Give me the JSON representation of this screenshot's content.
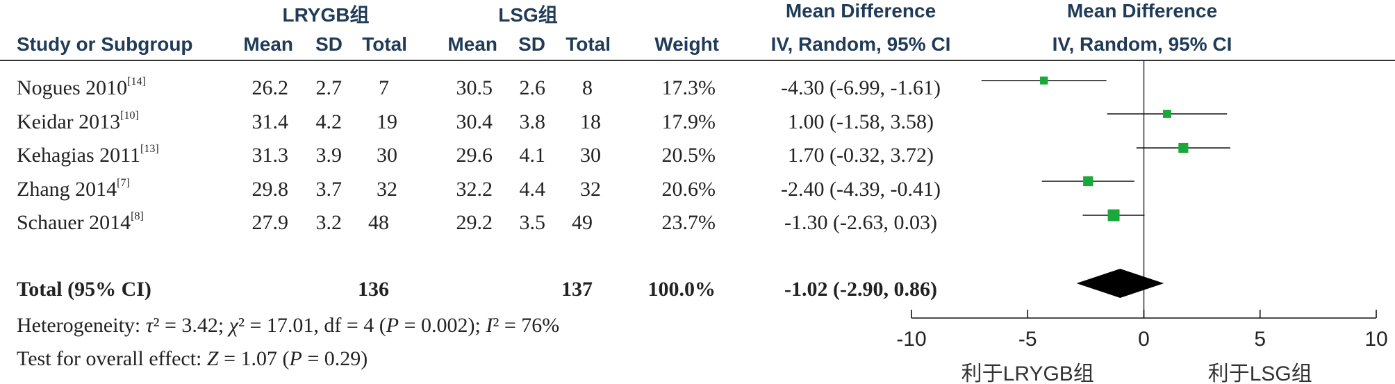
{
  "headers": {
    "group1": "LRYGB组",
    "group2": "LSG组",
    "md_top1": "Mean Difference",
    "md_top2": "Mean Difference",
    "study": "Study or Subgroup",
    "mean1": "Mean",
    "sd1": "SD",
    "total1": "Total",
    "mean2": "Mean",
    "sd2": "SD",
    "total2": "Total",
    "weight": "Weight",
    "ci1": "IV, Random, 95% CI",
    "ci2": "IV, Random, 95% CI"
  },
  "studies": [
    {
      "name": "Nogues 2010",
      "ref": "[14]",
      "mean1": "26.2",
      "sd1": "2.7",
      "total1": "7",
      "mean2": "30.5",
      "sd2": "2.6",
      "total2": "8",
      "weight": "17.3%",
      "ci": "-4.30 (-6.99, -1.61)"
    },
    {
      "name": "Keidar 2013",
      "ref": "[10]",
      "mean1": "31.4",
      "sd1": "4.2",
      "total1": "19",
      "mean2": "30.4",
      "sd2": "3.8",
      "total2": "18",
      "weight": "17.9%",
      "ci": "1.00 (-1.58, 3.58)"
    },
    {
      "name": "Kehagias 2011",
      "ref": "[13]",
      "mean1": "31.3",
      "sd1": "3.9",
      "total1": "30",
      "mean2": "29.6",
      "sd2": "4.1",
      "total2": "30",
      "weight": "20.5%",
      "ci": "1.70 (-0.32, 3.72)"
    },
    {
      "name": "Zhang 2014",
      "ref": "[7]",
      "mean1": "29.8",
      "sd1": "3.7",
      "total1": "32",
      "mean2": "32.2",
      "sd2": "4.4",
      "total2": "32",
      "weight": "20.6%",
      "ci": "-2.40 (-4.39, -0.41)"
    },
    {
      "name": "Schauer 2014",
      "ref": "[8]",
      "mean1": "27.9",
      "sd1": "3.2",
      "total1": "48",
      "mean2": "29.2",
      "sd2": "3.5",
      "total2": "49",
      "weight": "23.7%",
      "ci": "-1.30 (-2.63, 0.03)"
    }
  ],
  "total": {
    "label": "Total (95% CI)",
    "total1": "136",
    "total2": "137",
    "weight": "100.0%",
    "ci": "-1.02 (-2.90, 0.86)"
  },
  "footer": {
    "het_prefix": "Heterogeneity: ",
    "tau_sym": "τ",
    "tau_val": "² = 3.42; ",
    "chi_sym": "χ",
    "chi_val": "² = 17.01, df = 4 (",
    "p_sym": "P",
    "p_val": " = 0.002); ",
    "i_sym": "I",
    "i_val": "² = 76%",
    "test_prefix": "Test for overall effect: ",
    "z_sym": "Z",
    "z_val": " = 1.07 (",
    "p2_sym": "P",
    "p2_val": " = 0.29)"
  },
  "chart_data": {
    "type": "forest",
    "xlim": [
      -10,
      10
    ],
    "ticks": [
      -10,
      -5,
      0,
      5,
      10
    ],
    "tick_labels": [
      "-10",
      "-5",
      "0",
      "5",
      "10"
    ],
    "favours_left": "利于LRYGB组",
    "favours_right": "利于LSG组",
    "points": [
      {
        "md": -4.3,
        "lo": -6.99,
        "hi": -1.61,
        "weight": 17.3
      },
      {
        "md": 1.0,
        "lo": -1.58,
        "hi": 3.58,
        "weight": 17.9
      },
      {
        "md": 1.7,
        "lo": -0.32,
        "hi": 3.72,
        "weight": 20.5
      },
      {
        "md": -2.4,
        "lo": -4.39,
        "hi": -0.41,
        "weight": 20.6
      },
      {
        "md": -1.3,
        "lo": -2.63,
        "hi": 0.03,
        "weight": 23.7
      }
    ],
    "pooled": {
      "md": -1.02,
      "lo": -2.9,
      "hi": 0.86
    },
    "square_color": "#1aa83a",
    "diamond_color": "#000000"
  }
}
